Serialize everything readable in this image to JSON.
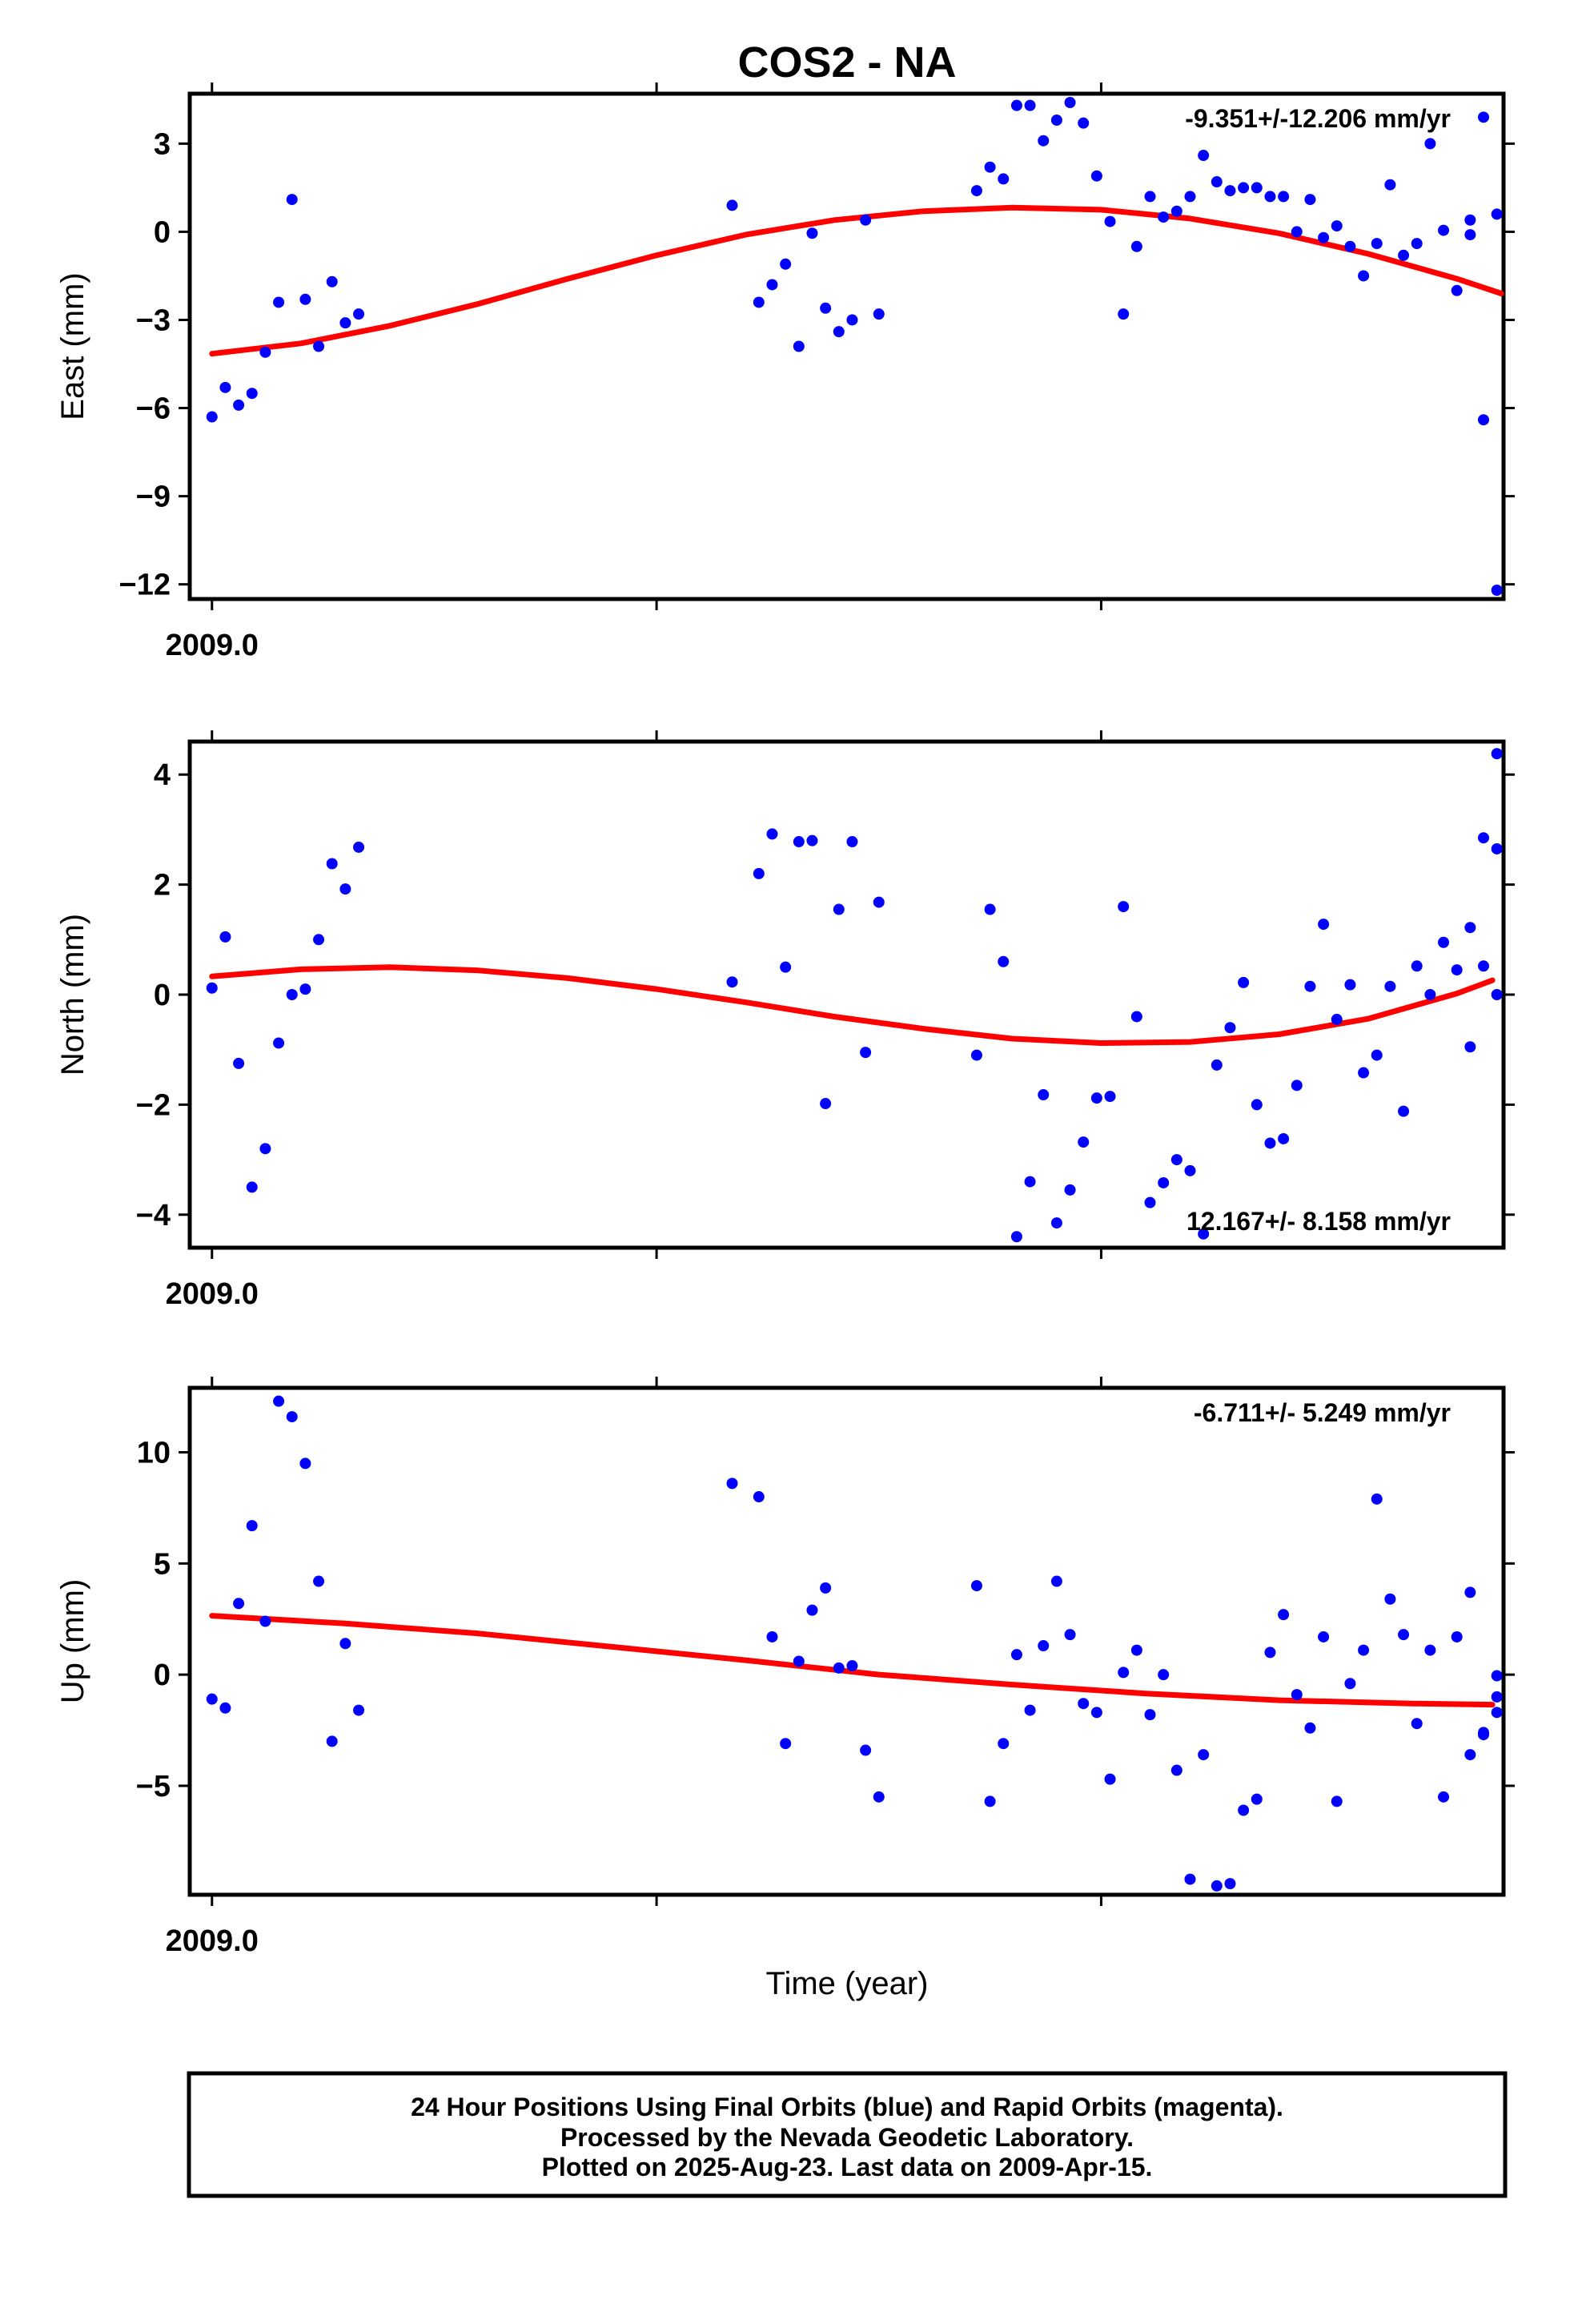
{
  "chart_data": {
    "type": "scatter",
    "title": "COS2 - NA",
    "xlabel": "Time (year)",
    "x_units": "decimal year",
    "xtick_label": "2009.0",
    "panels": [
      {
        "id": "east",
        "ylabel": "East (mm)",
        "ylim": [
          -12.5,
          4.7
        ],
        "yticks": [
          3,
          0,
          -3,
          -6,
          -9,
          -12
        ],
        "ytick_labels": [
          "3",
          "0",
          "−3",
          "−6",
          "−9",
          "−12"
        ],
        "rate_text": "-9.351+/-12.206 mm/yr",
        "rate_position": "top-right",
        "fit_color": "#ff0000",
        "point_color": "#0000ff",
        "fit": {
          "x": [
            2009.0,
            2009.02,
            2009.04,
            2009.06,
            2009.08,
            2009.1,
            2009.12,
            2009.14,
            2009.16,
            2009.18,
            2009.2,
            2009.22,
            2009.24,
            2009.26,
            2009.28,
            2009.29
          ],
          "y": [
            -4.15,
            -3.8,
            -3.2,
            -2.45,
            -1.6,
            -0.8,
            -0.1,
            0.4,
            0.7,
            0.82,
            0.75,
            0.45,
            -0.05,
            -0.75,
            -1.6,
            -2.1
          ]
        },
        "points": {
          "x": [
            2009.0,
            2009.003,
            2009.006,
            2009.009,
            2009.012,
            2009.015,
            2009.018,
            2009.021,
            2009.024,
            2009.027,
            2009.03,
            2009.033,
            2009.117,
            2009.123,
            2009.126,
            2009.129,
            2009.132,
            2009.135,
            2009.138,
            2009.141,
            2009.144,
            2009.147,
            2009.15,
            2009.172,
            2009.175,
            2009.178,
            2009.181,
            2009.184,
            2009.187,
            2009.19,
            2009.193,
            2009.196,
            2009.199,
            2009.202,
            2009.205,
            2009.208,
            2009.211,
            2009.214,
            2009.217,
            2009.22,
            2009.223,
            2009.226,
            2009.229,
            2009.232,
            2009.235,
            2009.238,
            2009.241,
            2009.244,
            2009.247,
            2009.25,
            2009.253,
            2009.256,
            2009.259,
            2009.262,
            2009.265,
            2009.268,
            2009.271,
            2009.274,
            2009.277,
            2009.28,
            2009.283,
            2009.286,
            2009.289
          ],
          "y": [
            -6.3,
            -5.3,
            -5.9,
            -5.5,
            -4.1,
            -2.4,
            1.1,
            -2.3,
            -3.9,
            -1.7,
            -3.1,
            -2.8,
            0.9,
            -2.4,
            -1.8,
            -1.1,
            -3.9,
            -0.05,
            -2.6,
            -3.4,
            -3.0,
            0.4,
            -2.8,
            1.4,
            2.2,
            1.8,
            4.3,
            4.3,
            3.1,
            3.8,
            4.4,
            3.7,
            1.9,
            0.35,
            -2.8,
            -0.5,
            1.2,
            0.5,
            0.7,
            1.2,
            2.6,
            1.7,
            1.4,
            1.5,
            1.5,
            1.2,
            1.2,
            0.0,
            1.1,
            -0.2,
            0.2,
            -0.5,
            -1.5,
            -0.4,
            1.6,
            -0.8,
            -0.4,
            3.0,
            0.05,
            -2.0,
            0.4,
            3.9,
            0.6
          ]
        },
        "extra_points": {
          "x": [
            2009.283,
            2009.286,
            2009.289
          ],
          "y": [
            -0.1,
            -6.4,
            -12.2
          ]
        }
      },
      {
        "id": "north",
        "ylabel": "North (mm)",
        "ylim": [
          -4.6,
          4.6
        ],
        "yticks": [
          4,
          2,
          0,
          -2,
          -4
        ],
        "ytick_labels": [
          "4",
          "2",
          "0",
          "−2",
          "−4"
        ],
        "rate_text": "12.167+/- 8.158 mm/yr",
        "rate_position": "bottom-right",
        "fit_color": "#ff0000",
        "point_color": "#0000ff",
        "fit": {
          "x": [
            2009.0,
            2009.02,
            2009.04,
            2009.06,
            2009.08,
            2009.1,
            2009.12,
            2009.14,
            2009.16,
            2009.18,
            2009.2,
            2009.22,
            2009.24,
            2009.26,
            2009.28,
            2009.288
          ],
          "y": [
            0.33,
            0.46,
            0.5,
            0.44,
            0.3,
            0.1,
            -0.14,
            -0.4,
            -0.62,
            -0.8,
            -0.88,
            -0.86,
            -0.72,
            -0.44,
            0.02,
            0.26
          ]
        },
        "points": {
          "x": [
            2009.0,
            2009.003,
            2009.006,
            2009.009,
            2009.012,
            2009.015,
            2009.018,
            2009.021,
            2009.024,
            2009.027,
            2009.03,
            2009.033,
            2009.117,
            2009.123,
            2009.126,
            2009.129,
            2009.132,
            2009.135,
            2009.138,
            2009.141,
            2009.144,
            2009.147,
            2009.15,
            2009.172,
            2009.175,
            2009.178,
            2009.181,
            2009.184,
            2009.187,
            2009.19,
            2009.193,
            2009.196,
            2009.199,
            2009.202,
            2009.205,
            2009.208,
            2009.211,
            2009.214,
            2009.217,
            2009.22,
            2009.223,
            2009.226,
            2009.229,
            2009.232,
            2009.235,
            2009.238,
            2009.241,
            2009.244,
            2009.247,
            2009.25,
            2009.253,
            2009.256,
            2009.259,
            2009.262,
            2009.265,
            2009.268,
            2009.271,
            2009.274,
            2009.277,
            2009.28,
            2009.283,
            2009.286,
            2009.289
          ],
          "y": [
            0.12,
            1.05,
            -1.25,
            -3.5,
            -2.8,
            -0.88,
            0.0,
            0.1,
            1.0,
            2.38,
            1.92,
            2.68,
            0.23,
            2.2,
            2.92,
            0.5,
            2.78,
            2.8,
            -1.98,
            1.55,
            2.78,
            -1.05,
            1.68,
            -1.1,
            1.55,
            0.6,
            -4.4,
            -3.4,
            -1.82,
            -4.15,
            -3.55,
            -2.68,
            -1.88,
            -1.85,
            1.6,
            -0.4,
            -3.78,
            -3.42,
            -3.0,
            -3.2,
            -4.35,
            -1.28,
            -0.6,
            0.22,
            -2.0,
            -2.7,
            -2.62,
            -1.65,
            0.15,
            1.28,
            -0.45,
            0.18,
            -1.42,
            -1.1,
            0.15,
            -2.12,
            0.52,
            0.0,
            0.95,
            0.45,
            -0.95,
            0.52,
            0.0
          ]
        },
        "extra_points": {
          "x": [
            2009.283,
            2009.286,
            2009.289
          ],
          "y": [
            1.22,
            2.85,
            4.38
          ]
        },
        "tail_point": {
          "x": 2009.289,
          "y": 2.65
        }
      },
      {
        "id": "up",
        "ylabel": "Up (mm)",
        "ylim": [
          -9.9,
          12.9
        ],
        "yticks": [
          10,
          5,
          0,
          -5
        ],
        "ytick_labels": [
          "10",
          "5",
          "0",
          "−5"
        ],
        "rate_text": "-6.711+/- 5.249 mm/yr",
        "rate_position": "top-right",
        "fit_color": "#ff0000",
        "point_color": "#0000ff",
        "fit": {
          "x": [
            2009.0,
            2009.03,
            2009.06,
            2009.09,
            2009.12,
            2009.15,
            2009.18,
            2009.21,
            2009.24,
            2009.27,
            2009.288
          ],
          "y": [
            2.65,
            2.3,
            1.85,
            1.25,
            0.65,
            0.0,
            -0.45,
            -0.85,
            -1.15,
            -1.3,
            -1.35
          ]
        },
        "points": {
          "x": [
            2009.0,
            2009.003,
            2009.006,
            2009.009,
            2009.012,
            2009.015,
            2009.018,
            2009.021,
            2009.024,
            2009.027,
            2009.03,
            2009.033,
            2009.117,
            2009.123,
            2009.126,
            2009.129,
            2009.132,
            2009.135,
            2009.138,
            2009.141,
            2009.144,
            2009.147,
            2009.15,
            2009.172,
            2009.175,
            2009.178,
            2009.181,
            2009.184,
            2009.187,
            2009.19,
            2009.193,
            2009.196,
            2009.199,
            2009.202,
            2009.205,
            2009.208,
            2009.211,
            2009.214,
            2009.217,
            2009.22,
            2009.223,
            2009.226,
            2009.229,
            2009.232,
            2009.235,
            2009.238,
            2009.241,
            2009.244,
            2009.247,
            2009.25,
            2009.253,
            2009.256,
            2009.259,
            2009.262,
            2009.265,
            2009.268,
            2009.271,
            2009.274,
            2009.277,
            2009.28,
            2009.283,
            2009.286,
            2009.289
          ],
          "y": [
            -1.1,
            -1.5,
            3.2,
            6.7,
            2.4,
            12.3,
            11.6,
            9.5,
            4.2,
            -3.0,
            1.4,
            -1.6,
            8.6,
            8.0,
            1.7,
            -3.1,
            0.6,
            2.9,
            3.9,
            0.3,
            0.4,
            -3.4,
            -5.5,
            4.0,
            -5.7,
            -3.1,
            0.9,
            -1.6,
            1.3,
            4.2,
            1.8,
            -1.3,
            -1.7,
            -4.7,
            0.1,
            1.1,
            -1.8,
            0.0,
            -4.3,
            -9.2,
            -3.6,
            -9.5,
            -9.4,
            -6.1,
            -5.6,
            1.0,
            2.7,
            -0.9,
            -2.4,
            1.7,
            -5.7,
            -0.4,
            1.1,
            7.9,
            3.4,
            1.8,
            -2.2,
            1.1,
            -5.5,
            1.7,
            3.7,
            -2.6,
            -1.7
          ]
        },
        "extra_points": {
          "x": [
            2009.283,
            2009.286,
            2009.289
          ],
          "y": [
            -3.6,
            -2.7,
            -0.05
          ]
        },
        "tail_point": {
          "x": 2009.289,
          "y": -1.0
        }
      }
    ],
    "footer_lines": [
      "24 Hour Positions Using Final Orbits (blue) and Rapid Orbits (magenta).",
      "Processed by the Nevada Geodetic Laboratory.",
      "Plotted on 2025-Aug-23. Last data on 2009-Apr-15."
    ]
  }
}
